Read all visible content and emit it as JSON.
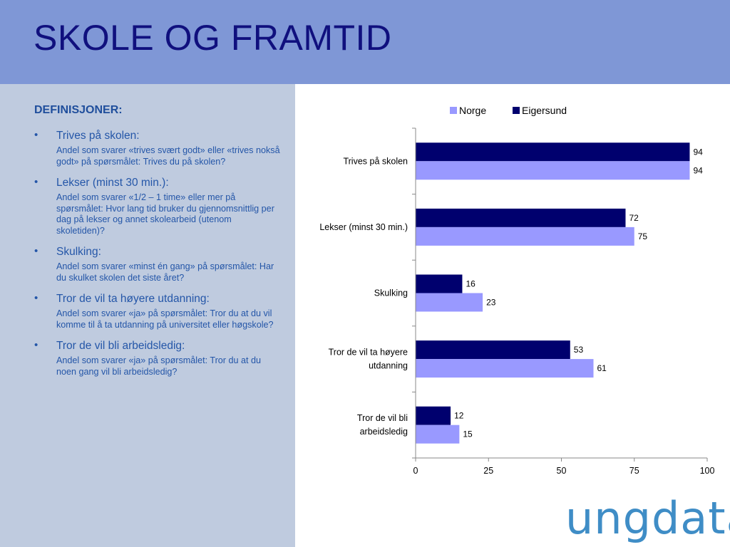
{
  "slide": {
    "title": "SKOLE OG FRAMTID"
  },
  "definitions": {
    "heading": "DEFINISJONER:",
    "items": [
      {
        "term": "Trives på skolen:",
        "desc": "Andel som svarer «trives svært godt» eller «trives nokså godt» på spørsmålet: Trives du på skolen?"
      },
      {
        "term": "Lekser (minst 30 min.):",
        "desc": "Andel som svarer «1/2 – 1 time» eller mer på spørsmålet: Hvor lang tid bruker du gjennomsnittlig per dag på lekser og annet skolearbeid (utenom skoletiden)?"
      },
      {
        "term": "Skulking:",
        "desc": "Andel som svarer «minst én gang» på spørsmålet: Har du skulket skolen det siste året?"
      },
      {
        "term": "Tror de vil ta høyere utdanning:",
        "desc": "Andel som svarer «ja» på spørsmålet: Tror du at du vil komme til å ta utdanning på universitet eller høgskole?"
      },
      {
        "term": "Tror de vil bli arbeidsledig:",
        "desc": "Andel som svarer «ja» på spørsmålet: Tror du at du noen gang vil bli arbeidsledig?"
      }
    ]
  },
  "logo": {
    "text": "ungdata"
  },
  "chart_data": {
    "type": "bar",
    "orientation": "horizontal",
    "categories": [
      [
        "Trives på skolen"
      ],
      [
        "Lekser (minst 30 min.)"
      ],
      [
        "Skulking"
      ],
      [
        "Tror de vil ta høyere",
        "utdanning"
      ],
      [
        "Tror de vil bli",
        "arbeidsledig"
      ]
    ],
    "series": [
      {
        "name": "Eigersund",
        "color": "#00006e",
        "values": [
          94,
          72,
          16,
          53,
          12
        ]
      },
      {
        "name": "Norge",
        "color": "#9999ff",
        "values": [
          94,
          75,
          23,
          61,
          15
        ]
      }
    ],
    "legend_order": [
      "Norge",
      "Eigersund"
    ],
    "legend_position": "top",
    "xlim": [
      0,
      100
    ],
    "xticks": [
      0,
      25,
      50,
      75,
      100
    ],
    "grid": false,
    "data_labels": true
  }
}
